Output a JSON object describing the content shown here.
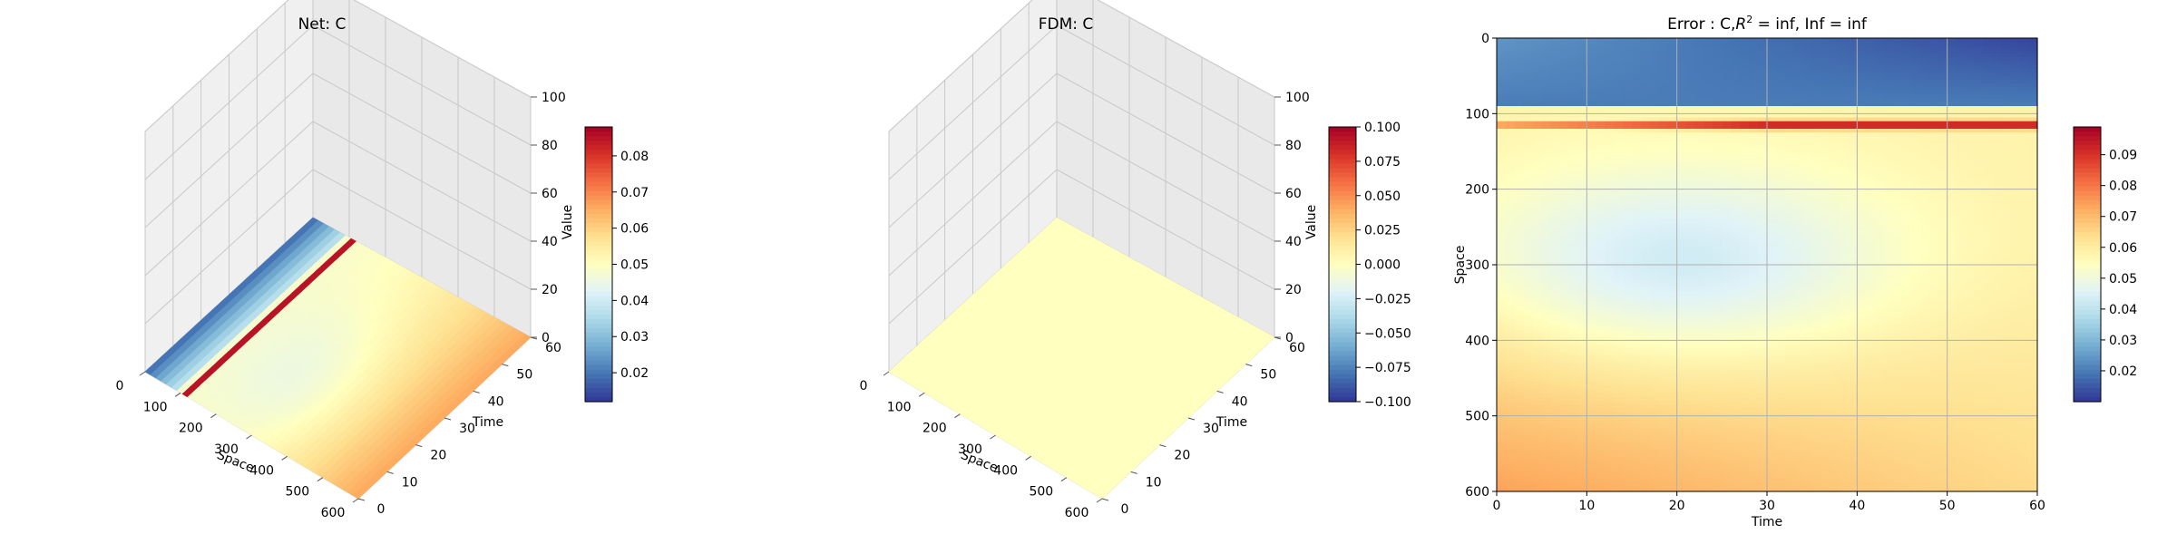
{
  "colors": {
    "colormap": [
      "#313695",
      "#4575b4",
      "#74add1",
      "#abd9e9",
      "#e0f3f8",
      "#ffffbf",
      "#fee090",
      "#fdae61",
      "#f46d43",
      "#d73027",
      "#a50026"
    ],
    "background": "#ffffff",
    "pane": "#f2f2f2"
  },
  "chart_data": [
    {
      "type": "surface3d",
      "title": "Net: C",
      "xlabel": "Space",
      "ylabel": "Time",
      "zlabel": "Value",
      "xlim": [
        0,
        600
      ],
      "ylim": [
        0,
        60
      ],
      "zlim": [
        0,
        100
      ],
      "xticks": [
        "0",
        "100",
        "200",
        "300",
        "400",
        "500",
        "600"
      ],
      "yticks": [
        "0",
        "10",
        "20",
        "30",
        "40",
        "50",
        "60"
      ],
      "zticks": [
        "0",
        "20",
        "40",
        "60",
        "80",
        "100"
      ],
      "colorbar": {
        "ticks": [
          "0.02",
          "0.03",
          "0.04",
          "0.05",
          "0.06",
          "0.07",
          "0.08"
        ],
        "tick_values": [
          0.02,
          0.03,
          0.04,
          0.05,
          0.06,
          0.07,
          0.08
        ],
        "range": [
          0.012,
          0.088
        ]
      },
      "surface": "near z=0; blue band for space < 90, red ridge near space ≈ 110, ≈0.055 elsewhere with warmer values toward space = 600"
    },
    {
      "type": "surface3d",
      "title": "FDM: C",
      "xlabel": "Space",
      "ylabel": "Time",
      "zlabel": "Value",
      "xlim": [
        0,
        600
      ],
      "ylim": [
        0,
        60
      ],
      "zlim": [
        0,
        100
      ],
      "xticks": [
        "0",
        "100",
        "200",
        "300",
        "400",
        "500",
        "600"
      ],
      "yticks": [
        "0",
        "10",
        "20",
        "30",
        "40",
        "50",
        "60"
      ],
      "zticks": [
        "0",
        "20",
        "40",
        "60",
        "80",
        "100"
      ],
      "colorbar": {
        "ticks": [
          "0.100",
          "0.075",
          "0.050",
          "0.025",
          "0.000",
          "−0.025",
          "−0.050",
          "−0.075",
          "−0.100"
        ],
        "tick_values": [
          0.1,
          0.075,
          0.05,
          0.025,
          0.0,
          -0.025,
          -0.05,
          -0.075,
          -0.1
        ],
        "range": [
          -0.1,
          0.1
        ]
      },
      "surface": "constant 0"
    },
    {
      "type": "heatmap",
      "title_prefix": "Error : C,",
      "title_r2": "R",
      "title_sup": "2",
      "title_suffix": " = inf, Inf = inf",
      "xlabel": "Time",
      "ylabel": "Space",
      "xlim": [
        0,
        60
      ],
      "ylim": [
        600,
        0
      ],
      "xticks": [
        "0",
        "10",
        "20",
        "30",
        "40",
        "50",
        "60"
      ],
      "yticks": [
        "0",
        "100",
        "200",
        "300",
        "400",
        "500",
        "600"
      ],
      "grid": true,
      "colorbar": {
        "ticks": [
          "0.09",
          "0.08",
          "0.07",
          "0.06",
          "0.05",
          "0.04",
          "0.03",
          "0.02"
        ],
        "tick_values": [
          0.09,
          0.08,
          0.07,
          0.06,
          0.05,
          0.04,
          0.03,
          0.02
        ],
        "range": [
          0.01,
          0.099
        ]
      },
      "values_description": "≈0.02 for space < 90, ≈0.09 ridge at space ≈ 115, ≈0.045 trough near space 300 / time 20, ≈0.07 toward space 600 / time 0"
    }
  ]
}
